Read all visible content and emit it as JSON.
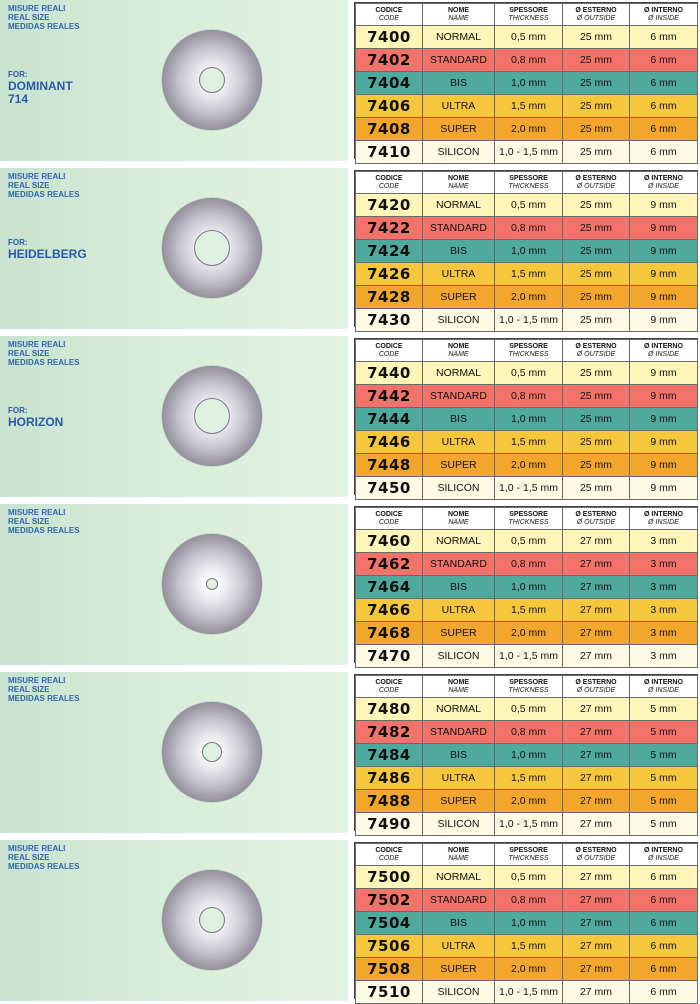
{
  "size_labels": [
    "MISURE REALI",
    "REAL SIZE",
    "MEDIDAS REALES"
  ],
  "headers": [
    {
      "main": "CODICE",
      "sub": "CODE"
    },
    {
      "main": "NOME",
      "sub": "NAME"
    },
    {
      "main": "SPESSORE",
      "sub": "THICKNESS"
    },
    {
      "main": "Ø ESTERNO",
      "sub": "Ø OUTSIDE"
    },
    {
      "main": "Ø INTERNO",
      "sub": "Ø INSIDE"
    }
  ],
  "colors": {
    "normal": "#fdf6b8",
    "standard": "#f3736a",
    "bis": "#4fa99c",
    "ultra": "#f6c73c",
    "super": "#f2a72c",
    "silicon": "#fefbe4",
    "label_blue": "#3366b0",
    "panel_green": "#d6ecd9"
  },
  "sections": [
    {
      "for_label": "FOR:",
      "for_name": "DOMINANT 714",
      "hole": "medium",
      "rows": [
        {
          "code": "7400",
          "name": "NORMAL",
          "thickness": "0,5 mm",
          "outside": "25 mm",
          "inside": "6 mm",
          "color": "normal"
        },
        {
          "code": "7402",
          "name": "STANDARD",
          "thickness": "0,8 mm",
          "outside": "25 mm",
          "inside": "6 mm",
          "color": "standard"
        },
        {
          "code": "7404",
          "name": "BIS",
          "thickness": "1,0 mm",
          "outside": "25 mm",
          "inside": "6 mm",
          "color": "bis"
        },
        {
          "code": "7406",
          "name": "ULTRA",
          "thickness": "1,5 mm",
          "outside": "25 mm",
          "inside": "6 mm",
          "color": "ultra"
        },
        {
          "code": "7408",
          "name": "SUPER",
          "thickness": "2,0 mm",
          "outside": "25 mm",
          "inside": "6 mm",
          "color": "super"
        },
        {
          "code": "7410",
          "name": "SILICON",
          "thickness": "1,0 - 1,5 mm",
          "outside": "25 mm",
          "inside": "6 mm",
          "color": "silicon"
        }
      ]
    },
    {
      "for_label": "FOR:",
      "for_name": "HEIDELBERG",
      "hole": "large",
      "rows": [
        {
          "code": "7420",
          "name": "NORMAL",
          "thickness": "0,5 mm",
          "outside": "25 mm",
          "inside": "9 mm",
          "color": "normal"
        },
        {
          "code": "7422",
          "name": "STANDARD",
          "thickness": "0,8 mm",
          "outside": "25 mm",
          "inside": "9 mm",
          "color": "standard"
        },
        {
          "code": "7424",
          "name": "BIS",
          "thickness": "1,0 mm",
          "outside": "25 mm",
          "inside": "9 mm",
          "color": "bis"
        },
        {
          "code": "7426",
          "name": "ULTRA",
          "thickness": "1,5 mm",
          "outside": "25 mm",
          "inside": "9 mm",
          "color": "ultra"
        },
        {
          "code": "7428",
          "name": "SUPER",
          "thickness": "2,0 mm",
          "outside": "25 mm",
          "inside": "9 mm",
          "color": "super"
        },
        {
          "code": "7430",
          "name": "SILICON",
          "thickness": "1,0 - 1,5 mm",
          "outside": "25 mm",
          "inside": "9 mm",
          "color": "silicon"
        }
      ]
    },
    {
      "for_label": "FOR:",
      "for_name": "HORIZON",
      "hole": "large",
      "rows": [
        {
          "code": "7440",
          "name": "NORMAL",
          "thickness": "0,5 mm",
          "outside": "25 mm",
          "inside": "9 mm",
          "color": "normal"
        },
        {
          "code": "7442",
          "name": "STANDARD",
          "thickness": "0,8 mm",
          "outside": "25 mm",
          "inside": "9 mm",
          "color": "standard"
        },
        {
          "code": "7444",
          "name": "BIS",
          "thickness": "1,0 mm",
          "outside": "25 mm",
          "inside": "9 mm",
          "color": "bis"
        },
        {
          "code": "7446",
          "name": "ULTRA",
          "thickness": "1,5 mm",
          "outside": "25 mm",
          "inside": "9 mm",
          "color": "ultra"
        },
        {
          "code": "7448",
          "name": "SUPER",
          "thickness": "2,0 mm",
          "outside": "25 mm",
          "inside": "9 mm",
          "color": "super"
        },
        {
          "code": "7450",
          "name": "SILICON",
          "thickness": "1,0 - 1,5 mm",
          "outside": "25 mm",
          "inside": "9 mm",
          "color": "silicon"
        }
      ]
    },
    {
      "for_label": "",
      "for_name": "",
      "hole": "tiny",
      "rows": [
        {
          "code": "7460",
          "name": "NORMAL",
          "thickness": "0,5 mm",
          "outside": "27 mm",
          "inside": "3 mm",
          "color": "normal"
        },
        {
          "code": "7462",
          "name": "STANDARD",
          "thickness": "0,8 mm",
          "outside": "27 mm",
          "inside": "3 mm",
          "color": "standard"
        },
        {
          "code": "7464",
          "name": "BIS",
          "thickness": "1,0 mm",
          "outside": "27 mm",
          "inside": "3 mm",
          "color": "bis"
        },
        {
          "code": "7466",
          "name": "ULTRA",
          "thickness": "1,5 mm",
          "outside": "27 mm",
          "inside": "3 mm",
          "color": "ultra"
        },
        {
          "code": "7468",
          "name": "SUPER",
          "thickness": "2,0 mm",
          "outside": "27 mm",
          "inside": "3 mm",
          "color": "super"
        },
        {
          "code": "7470",
          "name": "SILICON",
          "thickness": "1,0 - 1,5 mm",
          "outside": "27 mm",
          "inside": "3 mm",
          "color": "silicon"
        }
      ]
    },
    {
      "for_label": "",
      "for_name": "",
      "hole": "small",
      "rows": [
        {
          "code": "7480",
          "name": "NORMAL",
          "thickness": "0,5 mm",
          "outside": "27 mm",
          "inside": "5 mm",
          "color": "normal"
        },
        {
          "code": "7482",
          "name": "STANDARD",
          "thickness": "0,8 mm",
          "outside": "27 mm",
          "inside": "5 mm",
          "color": "standard"
        },
        {
          "code": "7484",
          "name": "BIS",
          "thickness": "1,0 mm",
          "outside": "27 mm",
          "inside": "5 mm",
          "color": "bis"
        },
        {
          "code": "7486",
          "name": "ULTRA",
          "thickness": "1,5 mm",
          "outside": "27 mm",
          "inside": "5 mm",
          "color": "ultra"
        },
        {
          "code": "7488",
          "name": "SUPER",
          "thickness": "2,0 mm",
          "outside": "27 mm",
          "inside": "5 mm",
          "color": "super"
        },
        {
          "code": "7490",
          "name": "SILICON",
          "thickness": "1,0 - 1,5 mm",
          "outside": "27 mm",
          "inside": "5 mm",
          "color": "silicon"
        }
      ]
    },
    {
      "for_label": "",
      "for_name": "",
      "hole": "medium",
      "rows": [
        {
          "code": "7500",
          "name": "NORMAL",
          "thickness": "0,5 mm",
          "outside": "27 mm",
          "inside": "6 mm",
          "color": "normal"
        },
        {
          "code": "7502",
          "name": "STANDARD",
          "thickness": "0,8 mm",
          "outside": "27 mm",
          "inside": "6 mm",
          "color": "standard"
        },
        {
          "code": "7504",
          "name": "BIS",
          "thickness": "1,0 mm",
          "outside": "27 mm",
          "inside": "6 mm",
          "color": "bis"
        },
        {
          "code": "7506",
          "name": "ULTRA",
          "thickness": "1,5 mm",
          "outside": "27 mm",
          "inside": "6 mm",
          "color": "ultra"
        },
        {
          "code": "7508",
          "name": "SUPER",
          "thickness": "2,0 mm",
          "outside": "27 mm",
          "inside": "6 mm",
          "color": "super"
        },
        {
          "code": "7510",
          "name": "SILICON",
          "thickness": "1,0 - 1,5 mm",
          "outside": "27 mm",
          "inside": "6 mm",
          "color": "silicon"
        }
      ]
    }
  ]
}
